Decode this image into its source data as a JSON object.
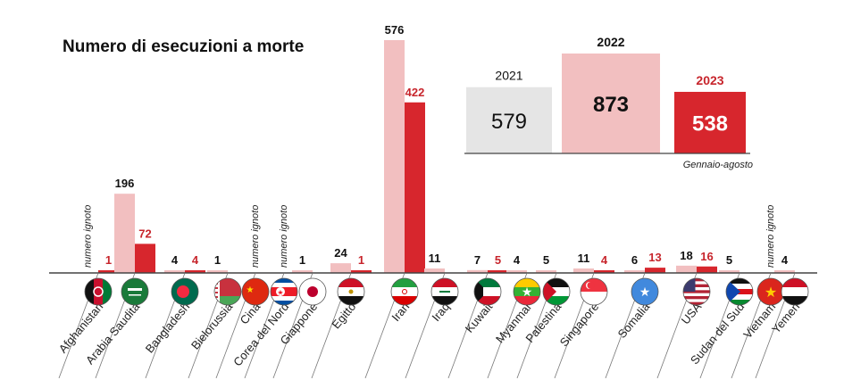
{
  "chart_data": {
    "type": "bar",
    "title": "Numero di esecuzioni a morte",
    "unknown_label": "numero ignoto",
    "series": [
      {
        "name": "2022",
        "color": "#f2bfc0"
      },
      {
        "name": "2023",
        "color": "#d7262d"
      }
    ],
    "colors": {
      "c2021": "#e5e5e5",
      "c2022": "#f2bfc0",
      "c2023": "#d7262d",
      "axis": "#444444",
      "text": "#111111",
      "accent": "#c7252c"
    },
    "categories": [
      {
        "name": "Afghanistan",
        "v2022": null,
        "v2023": 1,
        "label2022": "",
        "label2023": "1",
        "flag": "afghanistan-flag"
      },
      {
        "name": "Arabia Saudita",
        "v2022": 196,
        "v2023": 72,
        "label2022": "196",
        "label2023": "72",
        "flag": "saudi-arabia-flag"
      },
      {
        "name": "Bangladesh",
        "v2022": 4,
        "v2023": 4,
        "label2022": "4",
        "label2023": "4",
        "flag": "bangladesh-flag"
      },
      {
        "name": "Bielorussia",
        "v2022": 1,
        "v2023": null,
        "label2022": "1",
        "label2023": "",
        "flag": "belarus-flag"
      },
      {
        "name": "Cina",
        "v2022": null,
        "v2023": null,
        "label2022": "",
        "label2023": "",
        "flag": "china-flag"
      },
      {
        "name": "Corea del Nord",
        "v2022": null,
        "v2023": null,
        "label2022": "",
        "label2023": "",
        "flag": "north-korea-flag"
      },
      {
        "name": "Giappone",
        "v2022": 1,
        "v2023": null,
        "label2022": "1",
        "label2023": "",
        "flag": "japan-flag"
      },
      {
        "name": "Egitto",
        "v2022": 24,
        "v2023": 1,
        "label2022": "24",
        "label2023": "1",
        "flag": "egypt-flag"
      },
      {
        "name": "Iran",
        "v2022": 576,
        "v2023": 422,
        "label2022": "576",
        "label2023": "422",
        "flag": "iran-flag"
      },
      {
        "name": "Iraq",
        "v2022": 11,
        "v2023": null,
        "label2022": "11",
        "label2023": "",
        "flag": "iraq-flag"
      },
      {
        "name": "Kuwait",
        "v2022": 7,
        "v2023": 5,
        "label2022": "7",
        "label2023": "5",
        "flag": "kuwait-flag"
      },
      {
        "name": "Myanmar",
        "v2022": 4,
        "v2023": null,
        "label2022": "4",
        "label2023": "",
        "flag": "myanmar-flag"
      },
      {
        "name": "Palestina",
        "v2022": 5,
        "v2023": null,
        "label2022": "5",
        "label2023": "",
        "flag": "palestine-flag"
      },
      {
        "name": "Singapore",
        "v2022": 11,
        "v2023": 4,
        "label2022": "11",
        "label2023": "4",
        "flag": "singapore-flag"
      },
      {
        "name": "Somalia",
        "v2022": 6,
        "v2023": 13,
        "label2022": "6",
        "label2023": "13",
        "flag": "somalia-flag"
      },
      {
        "name": "USA",
        "v2022": 18,
        "v2023": 16,
        "label2022": "18",
        "label2023": "16",
        "flag": "usa-flag"
      },
      {
        "name": "Sudan del Sud",
        "v2022": 5,
        "v2023": null,
        "label2022": "5",
        "label2023": "",
        "flag": "south-sudan-flag"
      },
      {
        "name": "Vietnam",
        "v2022": null,
        "v2023": null,
        "label2022": "",
        "label2023": "",
        "flag": "vietnam-flag"
      },
      {
        "name": "Yemen",
        "v2022": 4,
        "v2023": null,
        "label2022": "4",
        "label2023": "",
        "flag": "yemen-flag"
      }
    ],
    "totals": {
      "years": [
        "2021",
        "2022",
        "2023"
      ],
      "values": [
        579,
        873,
        538
      ],
      "labels": [
        "579",
        "873",
        "538"
      ],
      "note": "Gennaio-agosto"
    }
  }
}
